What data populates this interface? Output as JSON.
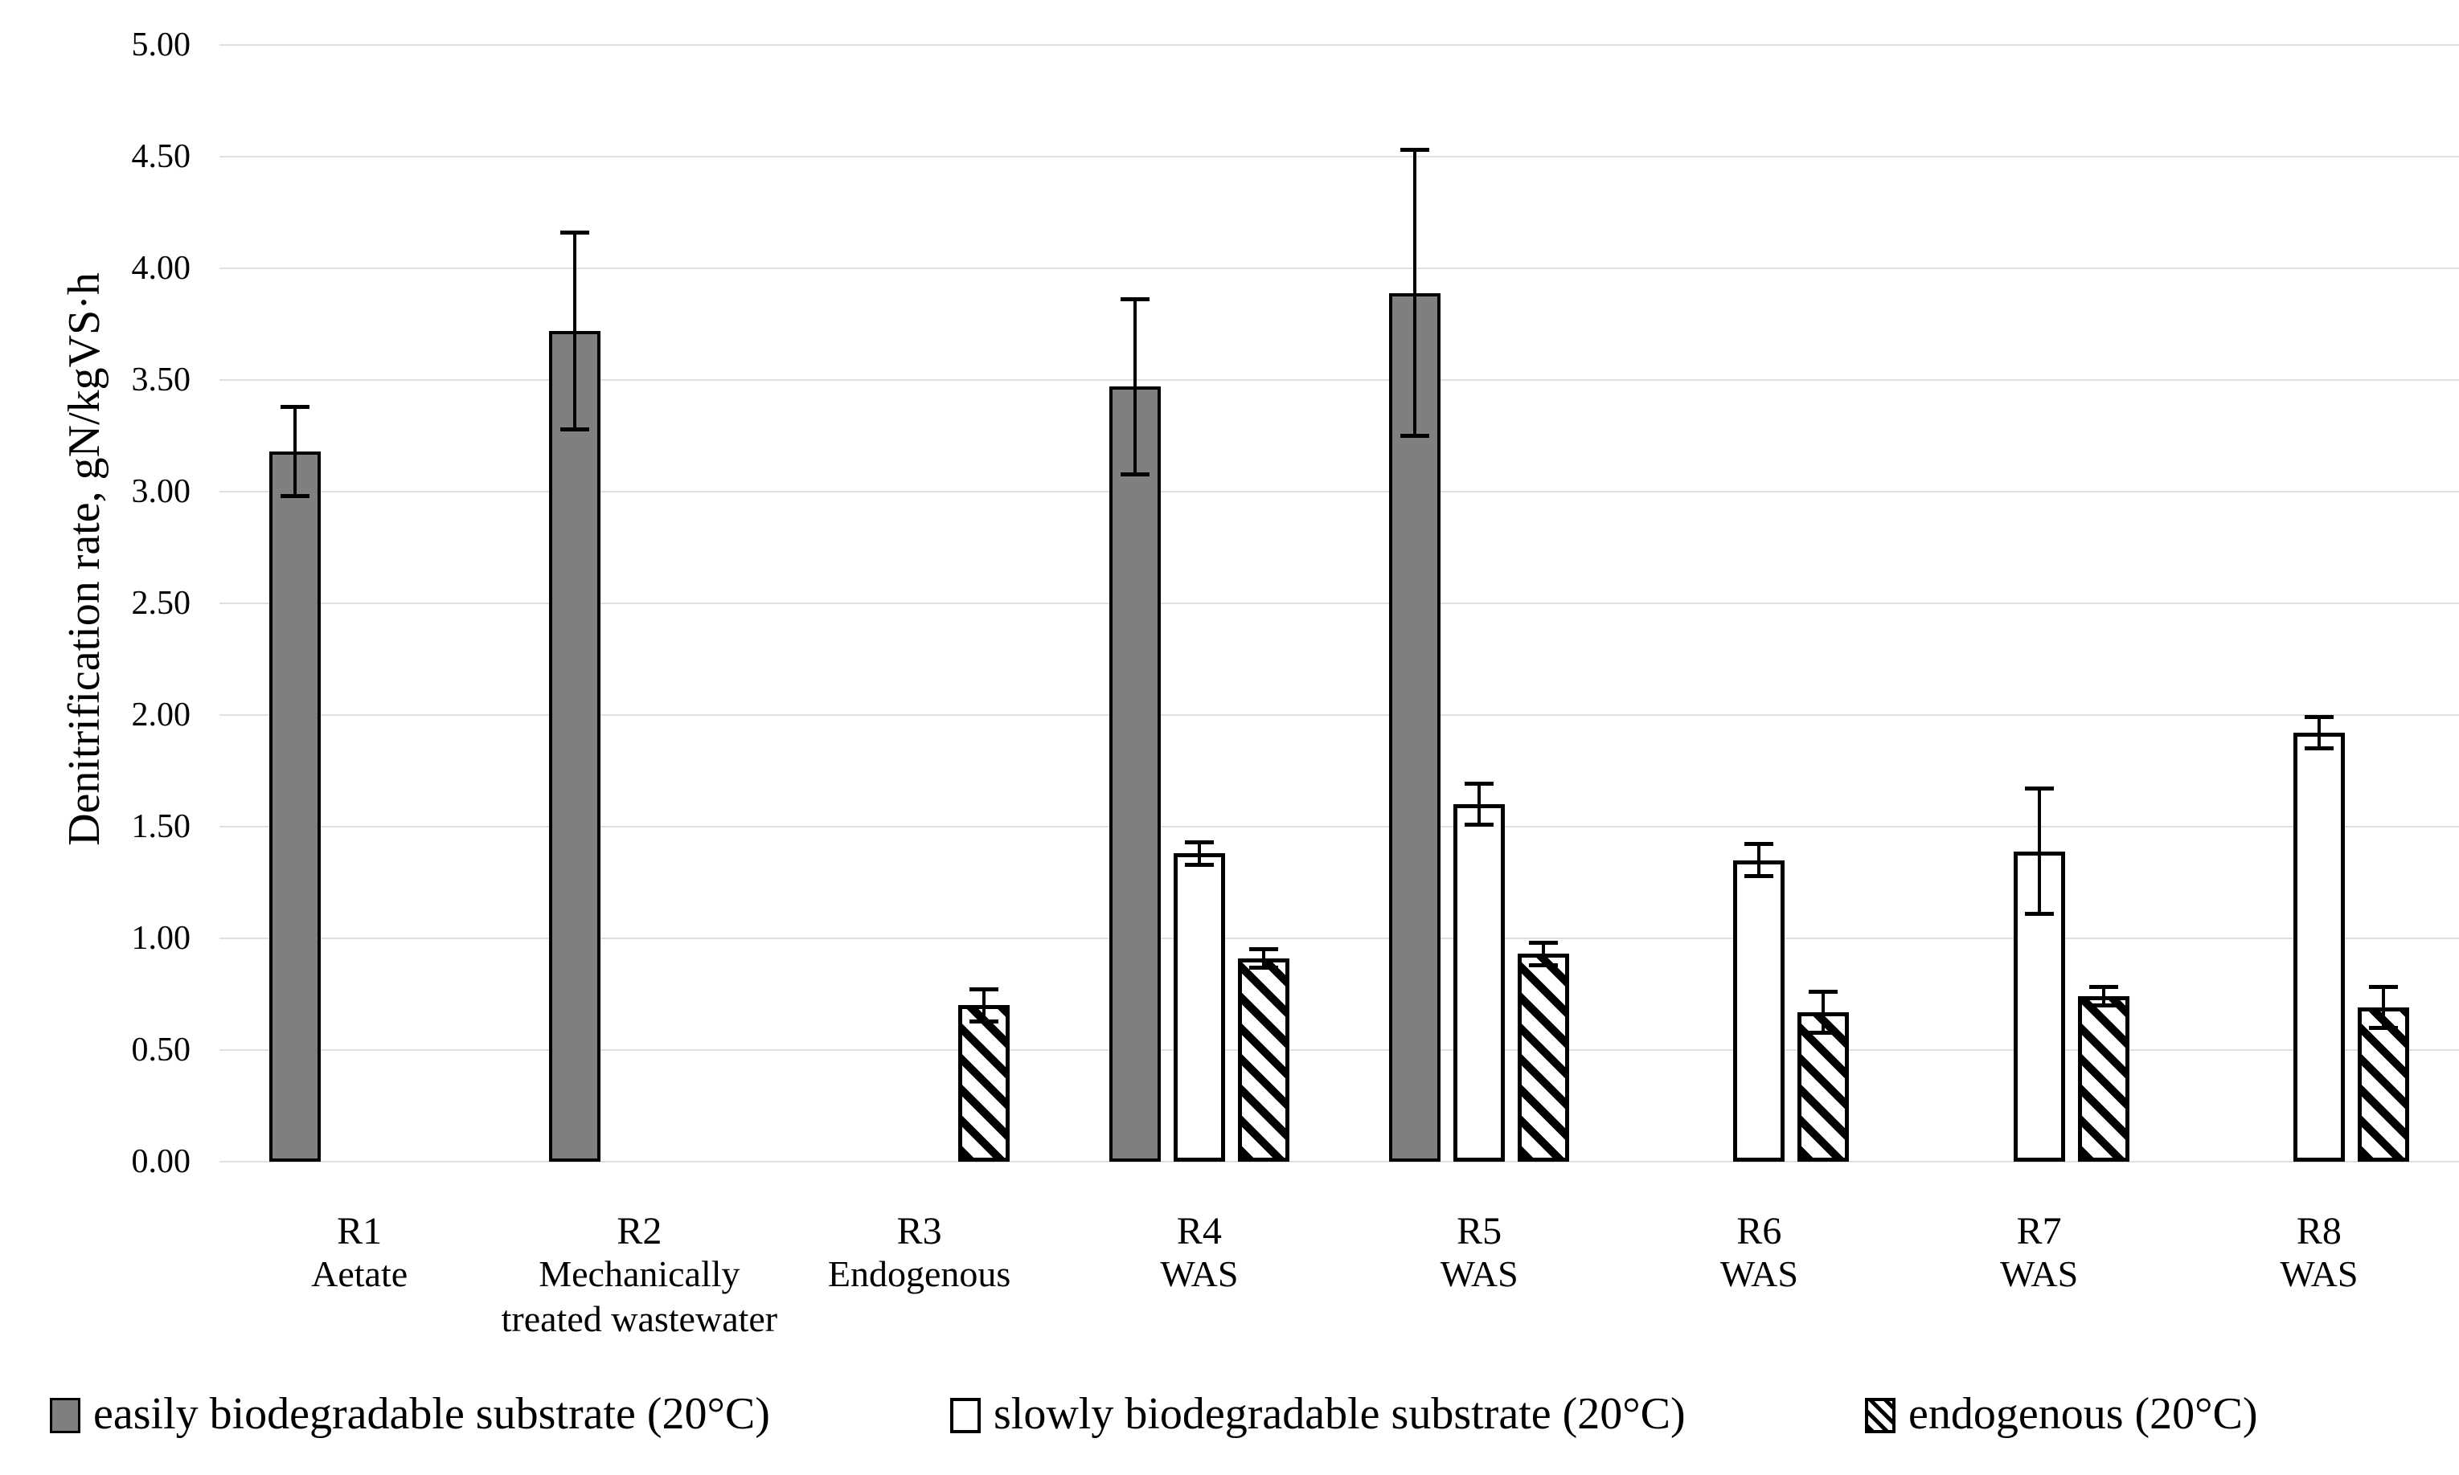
{
  "colors": {
    "bar_gray": "#7f7f7f",
    "bar_white": "#ffffff",
    "hatch_black": "#000000",
    "gridline": "#e0e0e0",
    "text": "#000000",
    "background": "#ffffff"
  },
  "y_axis": {
    "title": "Denitrification rate, gN/kgVS·h",
    "tick_labels": [
      "5.00",
      "4.50",
      "4.00",
      "3.50",
      "3.00",
      "2.50",
      "2.00",
      "1.50",
      "1.00",
      "0.50",
      "0.00"
    ]
  },
  "legend": {
    "items": [
      {
        "label": "easily biodegradable substrate (20°C)",
        "swatch": "solid"
      },
      {
        "label": "slowly biodegradable substrate (20°C)",
        "swatch": "white"
      },
      {
        "label": "endogenous (20°C)",
        "swatch": "hatch"
      }
    ]
  },
  "chart_data": {
    "type": "bar",
    "title": "",
    "xlabel": "",
    "ylabel": "Denitrification rate, gN/kgVS·h",
    "ylim": [
      0,
      5
    ],
    "ytick_step": 0.5,
    "grid": true,
    "legend_position": "bottom",
    "categories": [
      "R1",
      "R2",
      "R3",
      "R4",
      "R5",
      "R6",
      "R7",
      "R8"
    ],
    "category_sublabels": [
      "Aetate",
      "Mechanically treated wastewater",
      "Endogenous",
      "WAS",
      "WAS",
      "WAS",
      "WAS",
      "WAS"
    ],
    "series": [
      {
        "name": "easily biodegradable substrate (20°C)",
        "style": "solid",
        "values": [
          3.18,
          3.72,
          null,
          3.47,
          3.89,
          null,
          null,
          null
        ],
        "errors": [
          0.21,
          0.45,
          null,
          0.4,
          0.65,
          null,
          null,
          null
        ]
      },
      {
        "name": "slowly biodegradable substrate (20°C)",
        "style": "white",
        "values": [
          null,
          null,
          null,
          1.38,
          1.6,
          1.35,
          1.39,
          1.92
        ],
        "errors": [
          null,
          null,
          null,
          0.06,
          0.1,
          0.08,
          0.29,
          0.08
        ]
      },
      {
        "name": "endogenous (20°C)",
        "style": "hatch",
        "values": [
          null,
          null,
          0.7,
          0.91,
          0.93,
          0.67,
          0.74,
          0.69
        ],
        "errors": [
          null,
          null,
          0.08,
          0.05,
          0.06,
          0.1,
          0.05,
          0.1
        ]
      }
    ]
  }
}
